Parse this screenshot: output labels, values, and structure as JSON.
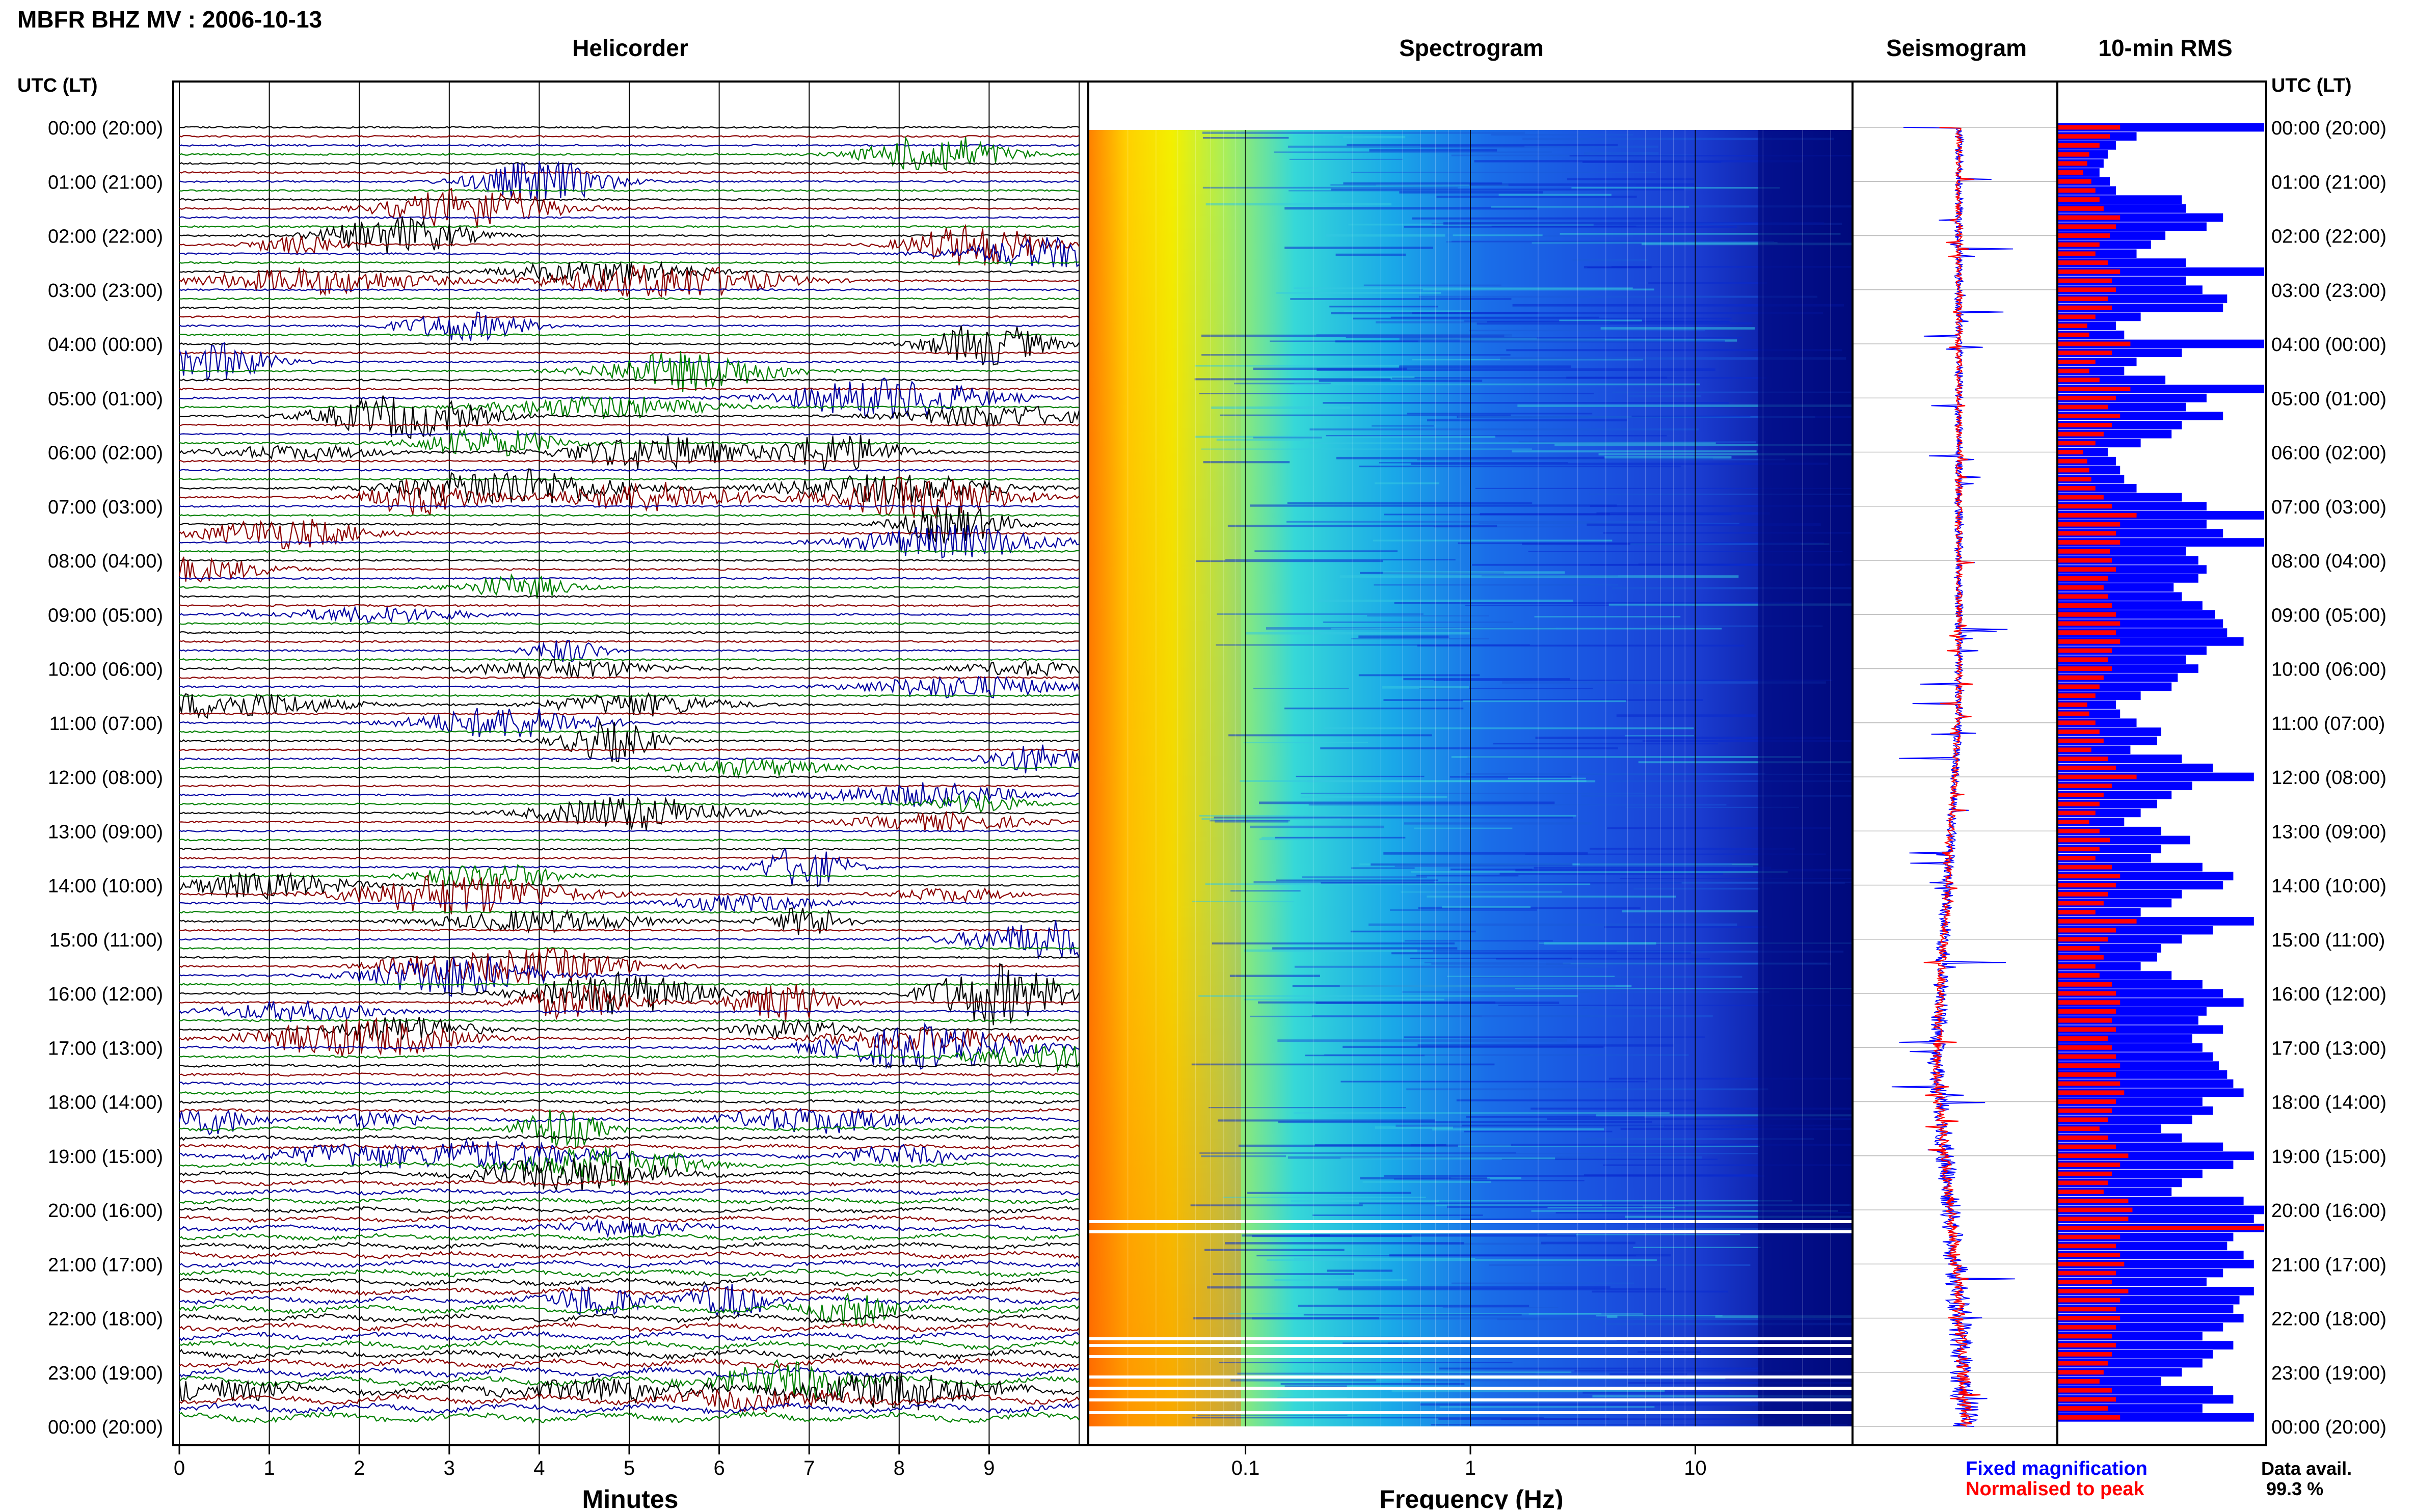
{
  "page": {
    "title": "MBFR BHZ MV : 2006-10-13"
  },
  "panels": {
    "helicorder": "Helicorder",
    "spectrogram": "Spectrogram",
    "seismogram": "Seismogram",
    "rms": "10-min RMS"
  },
  "time_axis_label": "UTC (LT)",
  "time_ticks": [
    "00:00 (20:00)",
    "01:00 (21:00)",
    "02:00 (22:00)",
    "03:00 (23:00)",
    "04:00 (00:00)",
    "05:00 (01:00)",
    "06:00 (02:00)",
    "07:00 (03:00)",
    "08:00 (04:00)",
    "09:00 (05:00)",
    "10:00 (06:00)",
    "11:00 (07:00)",
    "12:00 (08:00)",
    "13:00 (09:00)",
    "14:00 (10:00)",
    "15:00 (11:00)",
    "16:00 (12:00)",
    "17:00 (13:00)",
    "18:00 (14:00)",
    "19:00 (15:00)",
    "20:00 (16:00)",
    "21:00 (17:00)",
    "22:00 (18:00)",
    "23:00 (19:00)",
    "00:00 (20:00)"
  ],
  "helicorder_axis": {
    "label": "Minutes",
    "ticks": [
      "0",
      "1",
      "2",
      "3",
      "4",
      "5",
      "6",
      "7",
      "8",
      "9"
    ]
  },
  "spectrogram_axis": {
    "label": "Frequency (Hz)",
    "ticks": [
      "0.1",
      "1",
      "10"
    ]
  },
  "legend": {
    "fixed": "Fixed magnification",
    "normalised": "Normalised to peak",
    "fixed_color": "#0000ff",
    "normalised_color": "#ff0000"
  },
  "data_avail": {
    "label": "Data avail.",
    "value": "99.3 %"
  },
  "colors": {
    "trace_cycle": [
      "#000000",
      "#8b0000",
      "#0000a0",
      "#008000"
    ],
    "rms_fixed": "#0000ff",
    "rms_norm": "#ff0000"
  },
  "chart_data": {
    "type": "helicorder-spectrogram",
    "title": "MBFR BHZ MV : 2006-10-13",
    "helicorder": {
      "xlabel": "Minutes",
      "xlim": [
        0,
        10
      ],
      "rows": 144,
      "row_minutes": 10
    },
    "spectrogram": {
      "xlabel": "Frequency (Hz)",
      "scale": "log",
      "xlim": [
        0.02,
        50
      ]
    },
    "rms_10min": {
      "fixed_magnification": [
        100,
        38,
        28,
        24,
        22,
        20,
        25,
        28,
        60,
        62,
        80,
        72,
        52,
        45,
        38,
        62,
        100,
        62,
        70,
        82,
        80,
        40,
        28,
        32,
        100,
        60,
        38,
        32,
        52,
        100,
        72,
        62,
        80,
        60,
        55,
        40,
        24,
        28,
        30,
        32,
        38,
        60,
        72,
        100,
        72,
        80,
        100,
        62,
        68,
        72,
        68,
        56,
        60,
        70,
        76,
        80,
        82,
        90,
        72,
        62,
        68,
        58,
        55,
        40,
        28,
        30,
        38,
        50,
        48,
        35,
        60,
        75,
        95,
        65,
        55,
        48,
        40,
        32,
        50,
        64,
        50,
        45,
        70,
        85,
        80,
        60,
        55,
        40,
        95,
        75,
        60,
        50,
        48,
        40,
        55,
        70,
        80,
        90,
        72,
        68,
        80,
        65,
        70,
        75,
        78,
        82,
        85,
        90,
        70,
        75,
        65,
        50,
        60,
        80,
        95,
        85,
        70,
        60,
        55,
        90,
        100,
        95,
        100,
        85,
        82,
        90,
        95,
        80,
        72,
        95,
        88,
        85,
        90,
        80,
        70,
        85,
        75,
        70,
        60,
        50,
        75,
        85,
        70,
        95
      ],
      "normalised_to_peak": [
        30,
        25,
        20,
        15,
        14,
        12,
        16,
        18,
        20,
        22,
        30,
        28,
        25,
        20,
        18,
        24,
        30,
        26,
        28,
        24,
        26,
        18,
        14,
        15,
        35,
        26,
        18,
        15,
        20,
        35,
        28,
        24,
        30,
        26,
        22,
        18,
        12,
        14,
        15,
        16,
        18,
        22,
        26,
        38,
        30,
        28,
        30,
        25,
        26,
        28,
        24,
        22,
        24,
        26,
        28,
        30,
        28,
        30,
        26,
        24,
        26,
        22,
        20,
        18,
        14,
        15,
        18,
        20,
        22,
        16,
        24,
        28,
        38,
        26,
        22,
        20,
        18,
        15,
        20,
        25,
        20,
        18,
        26,
        30,
        28,
        24,
        22,
        18,
        38,
        28,
        24,
        20,
        22,
        18,
        20,
        26,
        28,
        30,
        28,
        26,
        28,
        24,
        26,
        28,
        30,
        28,
        30,
        32,
        28,
        26,
        24,
        20,
        24,
        28,
        34,
        30,
        26,
        24,
        22,
        34,
        36,
        34,
        100,
        30,
        28,
        30,
        32,
        28,
        26,
        34,
        30,
        28,
        30,
        28,
        26,
        28,
        26,
        24,
        22,
        20,
        26,
        28,
        24,
        30
      ]
    }
  }
}
